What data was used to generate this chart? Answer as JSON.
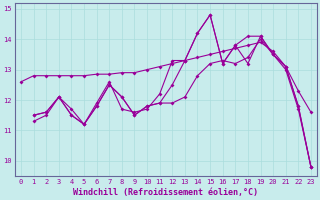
{
  "xlabel": "Windchill (Refroidissement éolien,°C)",
  "ylabel": "",
  "bg_color": "#c8ecec",
  "line_color": "#990099",
  "grid_color": "#aadddd",
  "axis_color": "#666699",
  "xlim": [
    -0.5,
    23.5
  ],
  "ylim": [
    9.5,
    15.2
  ],
  "xticks": [
    0,
    1,
    2,
    3,
    4,
    5,
    6,
    7,
    8,
    9,
    10,
    11,
    12,
    13,
    14,
    15,
    16,
    17,
    18,
    19,
    20,
    21,
    22,
    23
  ],
  "yticks": [
    10,
    11,
    12,
    13,
    14,
    15
  ],
  "curve1_x": [
    0,
    1,
    2,
    3,
    4,
    5,
    6,
    7,
    8,
    9,
    10,
    11,
    12,
    13,
    14,
    15,
    16,
    17,
    18,
    19,
    20,
    21,
    22,
    23
  ],
  "curve1_y": [
    12.6,
    12.8,
    12.8,
    12.8,
    12.8,
    12.8,
    12.85,
    12.85,
    12.9,
    12.9,
    13.0,
    13.1,
    13.2,
    13.3,
    13.4,
    13.5,
    13.6,
    13.7,
    13.8,
    13.9,
    13.6,
    13.1,
    12.3,
    11.6
  ],
  "curve2_x": [
    1,
    2,
    3,
    4,
    5,
    6,
    7,
    8,
    9,
    10,
    11,
    12,
    13,
    14,
    15,
    16,
    17,
    18,
    19,
    20,
    21,
    22,
    23
  ],
  "curve2_y": [
    11.3,
    11.5,
    12.1,
    11.7,
    11.2,
    11.9,
    12.6,
    11.7,
    11.6,
    11.7,
    12.2,
    13.3,
    13.3,
    14.2,
    14.8,
    13.2,
    13.8,
    13.2,
    14.1,
    13.5,
    13.0,
    11.7,
    9.8
  ],
  "curve3_x": [
    1,
    2,
    3,
    4,
    5,
    6,
    7,
    8,
    9,
    10,
    11,
    12,
    13,
    14,
    15,
    16,
    17,
    18,
    19,
    20,
    21,
    22,
    23
  ],
  "curve3_y": [
    11.5,
    11.6,
    12.1,
    11.5,
    11.2,
    11.8,
    12.5,
    12.1,
    11.5,
    11.8,
    11.9,
    11.9,
    12.1,
    12.8,
    13.2,
    13.3,
    13.2,
    13.4,
    14.0,
    13.5,
    13.1,
    11.8,
    9.8
  ],
  "curve4_x": [
    1,
    2,
    3,
    4,
    5,
    6,
    7,
    8,
    9,
    10,
    11,
    12,
    13,
    14,
    15,
    16,
    17,
    18,
    19,
    20,
    21,
    22,
    23
  ],
  "curve4_y": [
    11.5,
    11.6,
    12.1,
    11.5,
    11.2,
    11.8,
    12.5,
    12.1,
    11.5,
    11.8,
    11.9,
    12.5,
    13.3,
    14.2,
    14.8,
    13.2,
    13.8,
    14.1,
    14.1,
    13.5,
    13.1,
    11.8,
    9.8
  ],
  "marker": "D",
  "markersize": 2,
  "linewidth": 0.8,
  "tick_fontsize": 5,
  "label_fontsize": 6
}
